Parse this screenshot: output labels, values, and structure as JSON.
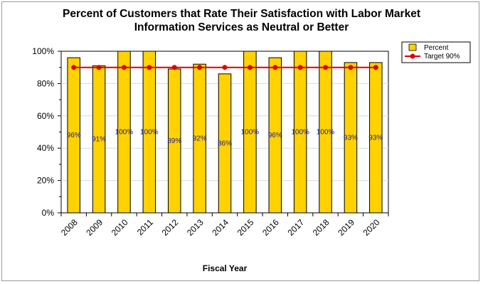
{
  "chart_data": {
    "type": "bar",
    "title_line1": "Percent of Customers that Rate Their Satisfaction with Labor Market",
    "title_line2": "Information Services as Neutral or Better",
    "xlabel": "Fiscal Year",
    "ylabel": "",
    "ylim": [
      0,
      100
    ],
    "yticks": [
      "0%",
      "20%",
      "40%",
      "60%",
      "80%",
      "100%"
    ],
    "ytick_values": [
      0,
      20,
      40,
      60,
      80,
      100
    ],
    "categories": [
      "2008",
      "2009",
      "2010",
      "2011",
      "2012",
      "2013",
      "2014",
      "2015",
      "2016",
      "2017",
      "2018",
      "2019",
      "2020"
    ],
    "series": [
      {
        "name": "Percent",
        "type": "bar",
        "color": "#FFD200",
        "values": [
          96,
          91,
          100,
          100,
          89,
          92,
          86,
          100,
          96,
          100,
          100,
          93,
          93
        ],
        "labels": [
          "96%",
          "91%",
          "100%",
          "100%",
          "89%",
          "92%",
          "86%",
          "100%",
          "96%",
          "100%",
          "100%",
          "93%",
          "93%"
        ]
      },
      {
        "name": "Target 90%",
        "type": "line",
        "color": "#E00000",
        "values": [
          90,
          90,
          90,
          90,
          90,
          90,
          90,
          90,
          90,
          90,
          90,
          90,
          90
        ]
      }
    ],
    "grid": true,
    "legend_position": "top-right"
  }
}
